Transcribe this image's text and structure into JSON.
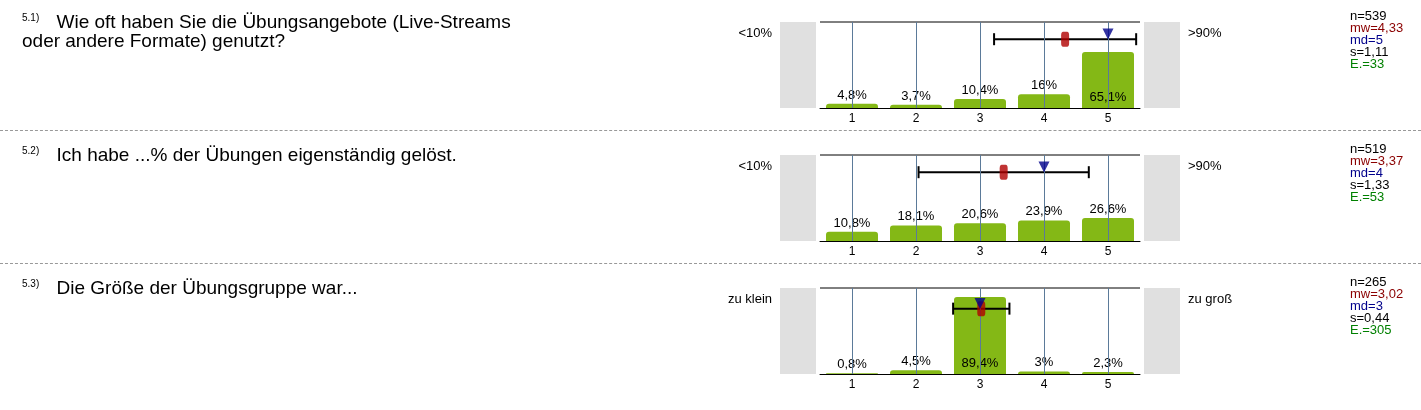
{
  "chart_data": [
    {
      "type": "bar",
      "title": "$^{5.1)}$ Wie oft haben Sie die Übungsangebote (Live-Streams oder andere Formate) genutzt?",
      "xlim": [
        0.5,
        5.5
      ],
      "xticks": [
        1,
        2,
        3,
        4,
        5
      ],
      "ylim": [
        0,
        100
      ],
      "grid": "x",
      "series": [
        {
          "type": "bar",
          "x": [
            1,
            2,
            3,
            4,
            5
          ],
          "values": [
            4.8,
            3.7,
            10.4,
            16,
            65.1
          ],
          "value_labels": [
            "4,8%",
            "3,7%",
            "10,4%",
            "16%",
            "65,1%"
          ],
          "color": "#84b816"
        },
        {
          "type": "scatter",
          "x": [
            4.33
          ],
          "values": [
            80
          ],
          "xerrors": [
            1.11
          ],
          "color": "#b00000"
        },
        {
          "type": "scatter",
          "x": [
            5
          ],
          "values": [
            86
          ],
          "color": "#00008b",
          "marker": "triangle"
        }
      ],
      "annotations": [
        "<10%",
        ">90%",
        "n=539",
        "mw=4,33",
        "md=5",
        "s=1,11",
        "E.=33"
      ]
    },
    {
      "type": "bar",
      "title": "$^{5.2)}$ Ich habe ...% der Übungen eigenständig gelöst.",
      "xlim": [
        0.5,
        5.5
      ],
      "xticks": [
        1,
        2,
        3,
        4,
        5
      ],
      "ylim": [
        0,
        100
      ],
      "grid": "x",
      "series": [
        {
          "type": "bar",
          "x": [
            1,
            2,
            3,
            4,
            5
          ],
          "values": [
            10.8,
            18.1,
            20.6,
            23.9,
            26.6
          ],
          "value_labels": [
            "10,8%",
            "18,1%",
            "20,6%",
            "23,9%",
            "26,6%"
          ],
          "color": "#84b816"
        },
        {
          "type": "scatter",
          "x": [
            3.37
          ],
          "values": [
            80
          ],
          "xerrors": [
            1.33
          ],
          "color": "#b00000"
        },
        {
          "type": "scatter",
          "x": [
            4
          ],
          "values": [
            86
          ],
          "color": "#00008b",
          "marker": "triangle"
        }
      ],
      "annotations": [
        "<10%",
        ">90%",
        "n=519",
        "mw=3,37",
        "md=4",
        "s=1,33",
        "E.=53"
      ]
    },
    {
      "type": "bar",
      "title": "$^{5.3)}$ Die Größe der Übungsgruppe war...",
      "xlim": [
        0.5,
        5.5
      ],
      "xticks": [
        1,
        2,
        3,
        4,
        5
      ],
      "ylim": [
        0,
        100
      ],
      "grid": "x",
      "series": [
        {
          "type": "bar",
          "x": [
            1,
            2,
            3,
            4,
            5
          ],
          "values": [
            0.8,
            4.5,
            89.4,
            3,
            2.3
          ],
          "value_labels": [
            "0,8%",
            "4,5%",
            "89,4%",
            "3%",
            "2,3%"
          ],
          "color": "#84b816"
        },
        {
          "type": "scatter",
          "x": [
            3.02
          ],
          "values": [
            76
          ],
          "xerrors": [
            0.44
          ],
          "color": "#b00000"
        },
        {
          "type": "scatter",
          "x": [
            3
          ],
          "values": [
            82
          ],
          "color": "#00008b",
          "marker": "triangle"
        }
      ],
      "annotations": [
        "zu klein",
        "zu groß",
        "n=265",
        "mw=3,02",
        "md=3",
        "s=0,44",
        "E.=305"
      ]
    }
  ]
}
